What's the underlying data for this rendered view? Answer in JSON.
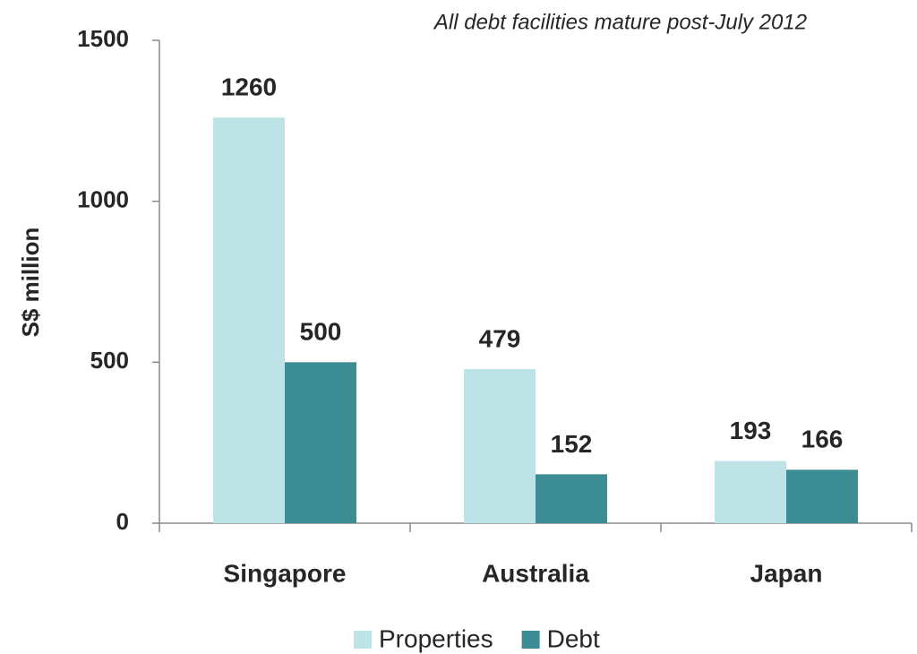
{
  "chart_data": {
    "type": "bar",
    "annotation": "All debt facilities mature post-July 2012",
    "y_label": "S$ million",
    "categories": [
      "Singapore",
      "Australia",
      "Japan"
    ],
    "series": [
      {
        "name": "Properties",
        "color": "#bde3e6",
        "values": [
          1260,
          479,
          193
        ]
      },
      {
        "name": "Debt",
        "color": "#3c8c93",
        "values": [
          500,
          152,
          166
        ]
      }
    ],
    "ylim": [
      0,
      1500
    ],
    "yticks": [
      0,
      500,
      1000,
      1500
    ],
    "grid": false,
    "legend": "bottom"
  }
}
